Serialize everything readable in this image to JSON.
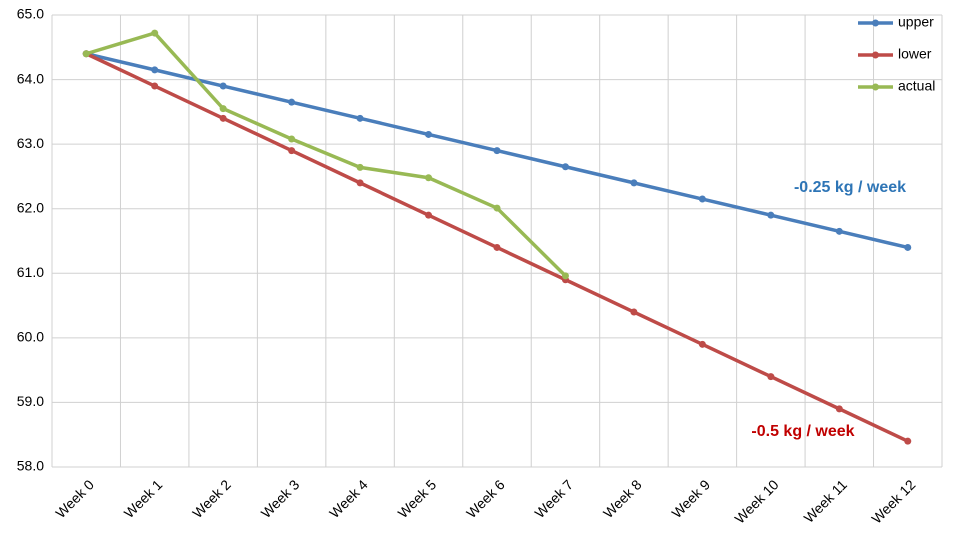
{
  "chart_data": {
    "type": "line",
    "categories": [
      "Week 0",
      "Week 1",
      "Week 2",
      "Week 3",
      "Week 4",
      "Week 5",
      "Week 6",
      "Week 7",
      "Week 8",
      "Week 9",
      "Week 10",
      "Week 11",
      "Week 12"
    ],
    "series": [
      {
        "name": "upper",
        "color": "#4a7ebb",
        "values": [
          64.4,
          64.15,
          63.9,
          63.65,
          63.4,
          63.15,
          62.9,
          62.65,
          62.4,
          62.15,
          61.9,
          61.65,
          61.4
        ]
      },
      {
        "name": "lower",
        "color": "#be4b48",
        "values": [
          64.4,
          63.9,
          63.4,
          62.9,
          62.4,
          61.9,
          61.4,
          60.9,
          60.4,
          59.9,
          59.4,
          58.9,
          58.4
        ]
      },
      {
        "name": "actual",
        "color": "#98b954",
        "values": [
          64.4,
          64.72,
          63.55,
          63.08,
          62.64,
          62.48,
          62.01,
          60.96,
          null,
          null,
          null,
          null,
          null
        ]
      }
    ],
    "ylim": [
      58,
      65
    ],
    "yticks": [
      {
        "value": 58,
        "label": "58.0"
      },
      {
        "value": 59,
        "label": "59.0"
      },
      {
        "value": 60,
        "label": "60.0"
      },
      {
        "value": 61,
        "label": "61.0"
      },
      {
        "value": 62,
        "label": "62.0"
      },
      {
        "value": 63,
        "label": "63.0"
      },
      {
        "value": 64,
        "label": "64.0"
      },
      {
        "value": 65,
        "label": "65.0"
      }
    ],
    "grid": true,
    "legend": "top-right",
    "annotations": [
      {
        "text": "-0.25 kg / week",
        "color": "#2e75b6"
      },
      {
        "text": "-0.5 kg / week",
        "color": "#c00000"
      }
    ]
  }
}
